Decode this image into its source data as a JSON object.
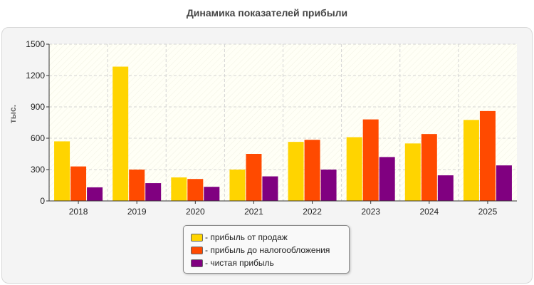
{
  "chart_data": {
    "type": "bar",
    "title": "Динамика показателей прибыли",
    "xlabel": "",
    "ylabel": "тыс.",
    "ylim": [
      0,
      1500
    ],
    "yticks": [
      0,
      300,
      600,
      900,
      1200,
      1500
    ],
    "grid": true,
    "legend_position": "bottom",
    "categories": [
      "2018",
      "2019",
      "2020",
      "2021",
      "2022",
      "2023",
      "2024",
      "2025"
    ],
    "series": [
      {
        "name": "прибыль от продаж",
        "color": "#FFD400",
        "values": [
          570,
          1285,
          225,
          300,
          565,
          610,
          550,
          775
        ]
      },
      {
        "name": "прибыль до налогообложения",
        "color": "#FF4A00",
        "values": [
          330,
          300,
          210,
          450,
          585,
          780,
          640,
          860
        ]
      },
      {
        "name": "чистая прибыль",
        "color": "#800080",
        "values": [
          130,
          170,
          135,
          235,
          300,
          420,
          245,
          340
        ]
      }
    ]
  }
}
